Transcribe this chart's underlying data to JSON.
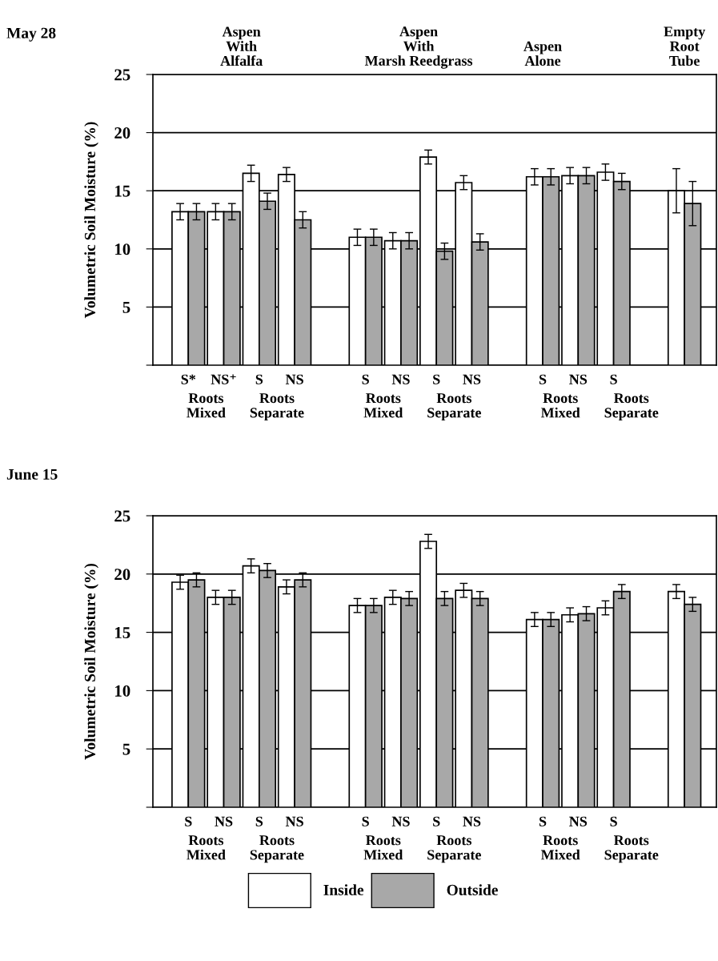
{
  "chart_data": [
    {
      "type": "bar",
      "title": "May 28",
      "ylabel": "Volumetric Soil Moisture (%)",
      "categories": [
        "S*",
        "NS⁺",
        "S",
        "NS",
        null,
        "S",
        "NS",
        "S",
        "NS",
        null,
        "S",
        "NS",
        "S",
        null,
        null
      ],
      "series": [
        {
          "name": "Inside",
          "color": "#ffffff",
          "values": [
            13.2,
            13.2,
            16.5,
            16.4,
            null,
            11.0,
            10.7,
            17.9,
            15.7,
            null,
            16.2,
            16.3,
            16.6,
            null,
            15.0
          ],
          "errors": [
            0.7,
            0.7,
            0.7,
            0.6,
            null,
            0.7,
            0.7,
            0.6,
            0.6,
            null,
            0.7,
            0.7,
            0.7,
            null,
            1.9
          ]
        },
        {
          "name": "Outside",
          "color": "#a8a8a8",
          "values": [
            13.2,
            13.2,
            14.1,
            12.5,
            null,
            11.0,
            10.7,
            9.8,
            10.6,
            null,
            16.2,
            16.3,
            15.8,
            null,
            13.9
          ],
          "errors": [
            0.7,
            0.7,
            0.7,
            0.7,
            null,
            0.7,
            0.7,
            0.7,
            0.7,
            null,
            0.7,
            0.7,
            0.7,
            null,
            1.9
          ]
        }
      ],
      "ylim": [
        0,
        25
      ],
      "yticks": [
        {
          "value": 0,
          "label": null
        },
        5,
        10,
        15,
        20,
        25
      ],
      "grid": "y",
      "legend": "bottom",
      "annotations": [
        "Aspen\nWith\nAlfalfa",
        "Aspen\nWith\nMarsh Reedgrass",
        "Aspen\nAlone",
        "Empty\nRoot\nTube",
        "Roots\nMixed",
        "Roots\nSeparate",
        "Roots\nMixed",
        "Roots\nSeparate",
        "Roots\nMixed",
        "Roots\nSeparate"
      ]
    },
    {
      "type": "bar",
      "title": "June 15",
      "ylabel": "Volumetric Soil Moisture (%)",
      "categories": [
        "S",
        "NS",
        "S",
        "NS",
        null,
        "S",
        "NS",
        "S",
        "NS",
        null,
        "S",
        "NS",
        "S",
        null,
        null
      ],
      "series": [
        {
          "name": "Inside",
          "color": "#ffffff",
          "values": [
            19.3,
            18.0,
            20.7,
            18.9,
            null,
            17.3,
            18.0,
            22.8,
            18.6,
            null,
            16.1,
            16.5,
            17.1,
            null,
            18.5
          ],
          "errors": [
            0.6,
            0.6,
            0.6,
            0.6,
            null,
            0.6,
            0.6,
            0.6,
            0.6,
            null,
            0.6,
            0.6,
            0.6,
            null,
            0.6
          ]
        },
        {
          "name": "Outside",
          "color": "#a8a8a8",
          "values": [
            19.5,
            18.0,
            20.3,
            19.5,
            null,
            17.3,
            17.9,
            17.9,
            17.9,
            null,
            16.1,
            16.6,
            18.5,
            null,
            17.4
          ],
          "errors": [
            0.6,
            0.6,
            0.6,
            0.6,
            null,
            0.6,
            0.6,
            0.6,
            0.6,
            null,
            0.6,
            0.6,
            0.6,
            null,
            0.6
          ]
        }
      ],
      "ylim": [
        0,
        25
      ],
      "yticks": [
        {
          "value": 0,
          "label": null
        },
        5,
        10,
        15,
        20,
        25
      ],
      "grid": "y",
      "legend": "bottom",
      "annotations": [
        "Roots\nMixed",
        "Roots\nSeparate",
        "Roots\nMixed",
        "Roots\nSeparate",
        "Roots\nMixed",
        "Roots\nSeparate"
      ]
    }
  ]
}
